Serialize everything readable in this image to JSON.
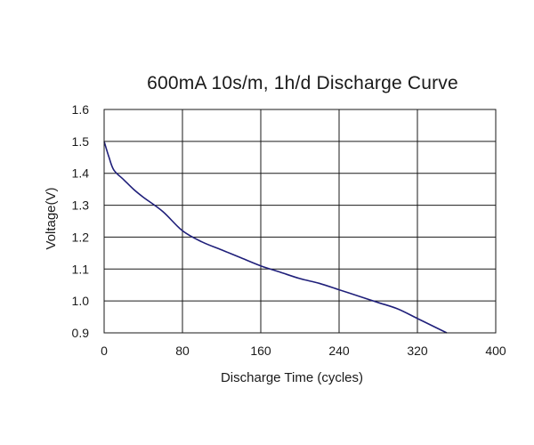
{
  "chart_data": {
    "type": "line",
    "title": "600mA 10s/m, 1h/d Discharge Curve",
    "xlabel": "Discharge Time (cycles)",
    "ylabel": "Voltage(V)",
    "xlim": [
      0,
      400
    ],
    "ylim": [
      0.9,
      1.6
    ],
    "xticks": [
      "0",
      "80",
      "160",
      "240",
      "320",
      "400"
    ],
    "yticks": [
      "0.9",
      "1.0",
      "1.1",
      "1.2",
      "1.3",
      "1.4",
      "1.5",
      "1.6"
    ],
    "xtick_values": [
      0,
      80,
      160,
      240,
      320,
      400
    ],
    "ytick_values": [
      0.9,
      1.0,
      1.1,
      1.2,
      1.3,
      1.4,
      1.5,
      1.6
    ],
    "grid": true,
    "series": [
      {
        "color": "#1f1f7a",
        "points": [
          [
            0,
            1.5
          ],
          [
            5,
            1.45
          ],
          [
            10,
            1.41
          ],
          [
            20,
            1.38
          ],
          [
            30,
            1.35
          ],
          [
            40,
            1.325
          ],
          [
            60,
            1.28
          ],
          [
            80,
            1.22
          ],
          [
            100,
            1.185
          ],
          [
            120,
            1.16
          ],
          [
            140,
            1.135
          ],
          [
            160,
            1.11
          ],
          [
            180,
            1.09
          ],
          [
            200,
            1.07
          ],
          [
            220,
            1.055
          ],
          [
            240,
            1.035
          ],
          [
            260,
            1.015
          ],
          [
            280,
            0.995
          ],
          [
            300,
            0.975
          ],
          [
            320,
            0.945
          ],
          [
            340,
            0.915
          ],
          [
            350,
            0.9
          ]
        ]
      }
    ]
  }
}
